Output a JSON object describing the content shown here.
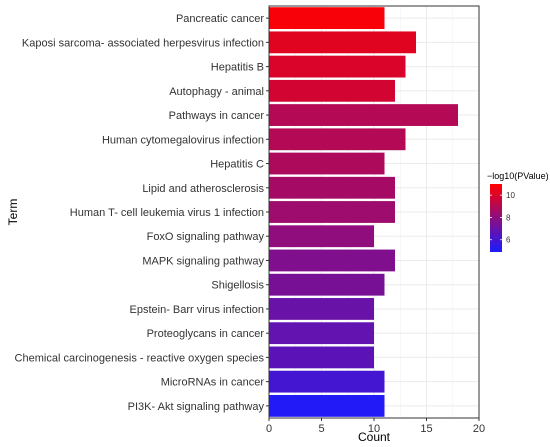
{
  "chart_data": {
    "type": "bar",
    "orientation": "horizontal",
    "xlabel": "Count",
    "ylabel": "Term",
    "xlim": [
      0,
      20
    ],
    "xticks": [
      0,
      5,
      10,
      15,
      20
    ],
    "grid": true,
    "legend_position": "right",
    "color_low": "#1b1bff",
    "color_high": "#ff0000",
    "categories": [
      "Pancreatic cancer",
      "Kaposi sarcoma- associated herpesvirus infection",
      "Hepatitis B",
      "Autophagy -  animal",
      "Pathways in cancer",
      "Human cytomegalovirus infection",
      "Hepatitis C",
      "Lipid and atherosclerosis",
      "Human T- cell leukemia virus 1 infection",
      "FoxO signaling pathway",
      "MAPK signaling pathway",
      "Shigellosis",
      "Epstein- Barr virus infection",
      "Proteoglycans in cancer",
      "Chemical carcinogenesis -  reactive oxygen species",
      "MicroRNAs in cancer",
      "PI3K- Akt signaling pathway"
    ],
    "values": [
      11,
      14,
      13,
      12,
      18,
      13,
      11,
      12,
      12,
      10,
      12,
      11,
      10,
      10,
      10,
      11,
      11
    ],
    "color_values": [
      10.8,
      10.2,
      10.0,
      9.8,
      9.0,
      9.0,
      8.8,
      8.6,
      8.4,
      8.0,
      7.6,
      7.4,
      7.0,
      6.8,
      6.6,
      6.0,
      5.1
    ],
    "legend": {
      "title": "−log10(PValue)",
      "ticks": [
        6,
        8,
        10
      ],
      "min": 4.9,
      "max": 11.0
    }
  }
}
